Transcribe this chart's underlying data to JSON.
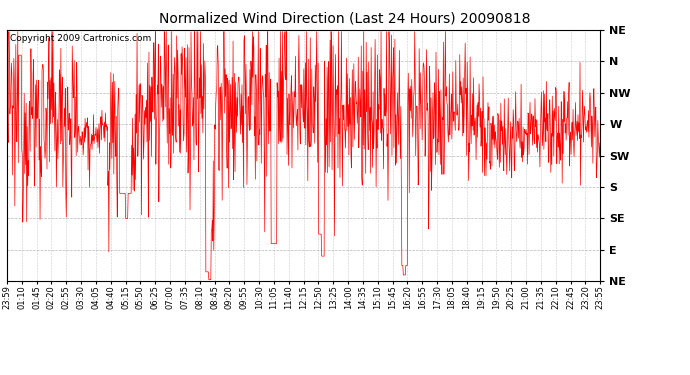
{
  "title": "Normalized Wind Direction (Last 24 Hours) 20090818",
  "copyright_text": "Copyright 2009 Cartronics.com",
  "line_color": "#FF0000",
  "background_color": "#FFFFFF",
  "plot_bg_color": "#FFFFFF",
  "grid_color": "#999999",
  "y_labels": [
    "NE",
    "N",
    "NW",
    "W",
    "SW",
    "S",
    "SE",
    "E",
    "NE"
  ],
  "y_values": [
    8,
    7,
    6,
    5,
    4,
    3,
    2,
    1,
    0
  ],
  "y_min": 0,
  "y_max": 8,
  "x_tick_labels": [
    "23:59",
    "01:10",
    "01:45",
    "02:20",
    "02:55",
    "03:30",
    "04:05",
    "04:40",
    "05:15",
    "05:50",
    "06:25",
    "07:00",
    "07:35",
    "08:10",
    "08:45",
    "09:20",
    "09:55",
    "10:30",
    "11:05",
    "11:40",
    "12:15",
    "12:50",
    "13:25",
    "14:00",
    "14:35",
    "15:10",
    "15:45",
    "16:20",
    "16:55",
    "17:30",
    "18:05",
    "18:40",
    "19:15",
    "19:50",
    "20:25",
    "21:00",
    "21:35",
    "22:10",
    "22:45",
    "23:20",
    "23:55"
  ],
  "seed": 12345,
  "n_points": 1200
}
